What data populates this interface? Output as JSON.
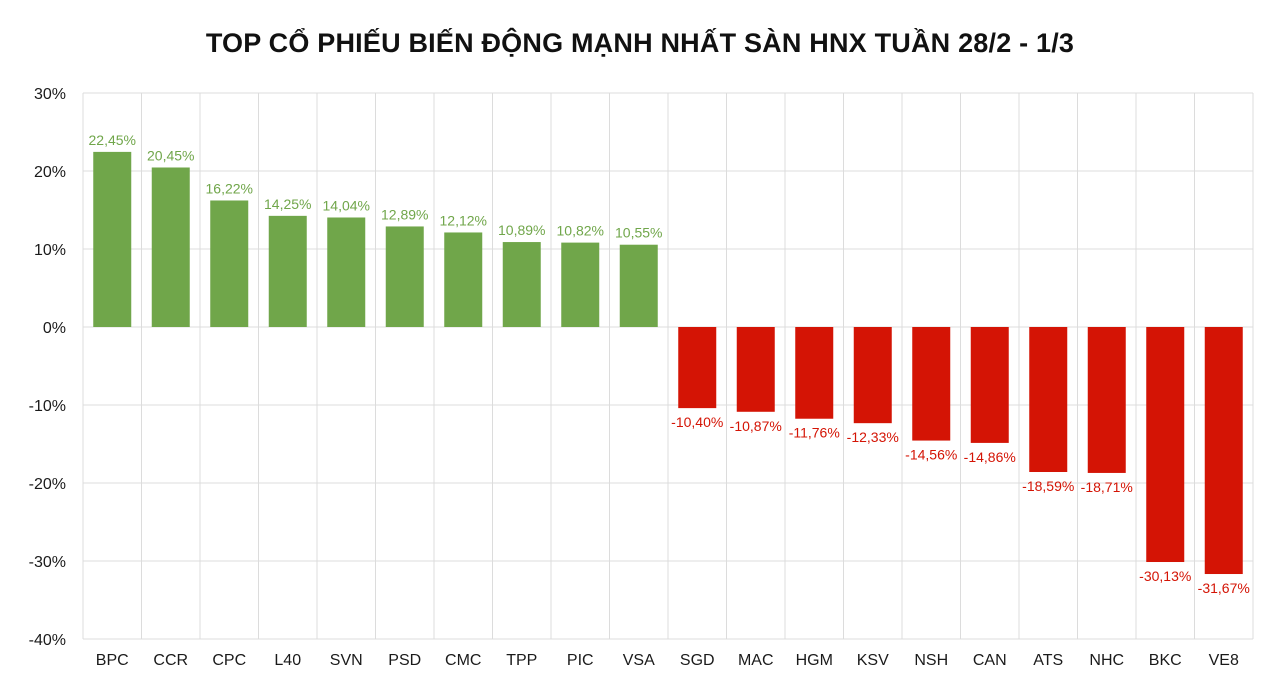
{
  "chart_data": {
    "type": "bar",
    "title": "TOP CỔ PHIẾU BIẾN ĐỘNG MẠNH NHẤT SÀN HNX TUẦN 28/2 - 1/3",
    "xlabel": "",
    "ylabel": "",
    "ylim": [
      -40,
      30
    ],
    "yticks": [
      "30%",
      "20%",
      "10%",
      "0%",
      "-10%",
      "-20%",
      "-30%",
      "-40%"
    ],
    "ytick_values": [
      30,
      20,
      10,
      0,
      -10,
      -20,
      -30,
      -40
    ],
    "grid": true,
    "categories": [
      "BPC",
      "CCR",
      "CPC",
      "L40",
      "SVN",
      "PSD",
      "CMC",
      "TPP",
      "PIC",
      "VSA",
      "SGD",
      "MAC",
      "HGM",
      "KSV",
      "NSH",
      "CAN",
      "ATS",
      "NHC",
      "BKC",
      "VE8"
    ],
    "values": [
      22.45,
      20.45,
      16.22,
      14.25,
      14.04,
      12.89,
      12.12,
      10.89,
      10.82,
      10.55,
      -10.4,
      -10.87,
      -11.76,
      -12.33,
      -14.56,
      -14.86,
      -18.59,
      -18.71,
      -30.13,
      -31.67
    ],
    "data_labels": [
      "22,45%",
      "20,45%",
      "16,22%",
      "14,25%",
      "14,04%",
      "12,89%",
      "12,12%",
      "10,89%",
      "10,82%",
      "10,55%",
      "-10,40%",
      "-10,87%",
      "-11,76%",
      "-12,33%",
      "-14,56%",
      "-14,86%",
      "-18,59%",
      "-18,71%",
      "-30,13%",
      "-31,67%"
    ],
    "colors": {
      "positive": "#70a64a",
      "negative": "#d41405",
      "grid": "#dcdcdc",
      "text": "#1a1a1a"
    }
  }
}
